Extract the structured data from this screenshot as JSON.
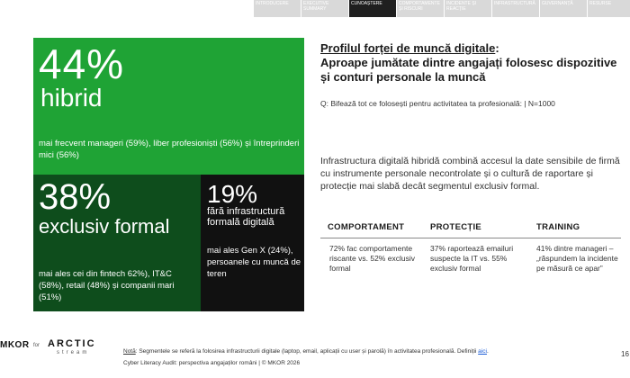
{
  "nav": {
    "items": [
      {
        "label": "INTRODUCERE",
        "active": false
      },
      {
        "label": "EXECUTIVE SUMMARY",
        "active": false
      },
      {
        "label": "CUNOAȘTERE",
        "active": true
      },
      {
        "label": "COMPORTAMENTE ȘI RISCURI",
        "active": false
      },
      {
        "label": "INCIDENTE ȘI REACȚIE",
        "active": false
      },
      {
        "label": "INFRASTRUCTURĂ",
        "active": false
      },
      {
        "label": "GUVERNANȚĂ",
        "active": false
      },
      {
        "label": "RESURSE",
        "active": false
      }
    ]
  },
  "hybrid": {
    "pct": "44%",
    "label": "hibrid",
    "desc": "mai frecvent manageri (59%), liber profesioniști (56%) și întreprinderi mici (56%)"
  },
  "formal": {
    "pct": "38%",
    "label": "exclusiv formal",
    "desc": "mai ales cei din fintech 62%), IT&C (58%), retail (48%) și companii mari (51%)"
  },
  "none": {
    "pct": "19%",
    "label": "fără infrastructură formală digitală",
    "desc": "mai ales Gen X (24%), persoanele cu muncă de teren"
  },
  "title": {
    "line1": "Profilul forței de muncă digitale",
    "colon": ":",
    "line2": "Aproape jumătate dintre angajați folosesc dispozitive și conturi personale la muncă"
  },
  "question": "Q: Bifează tot ce folosești pentru activitatea ta profesională: | N=1000",
  "paragraph": "Infrastructura digitală hibridă combină accesul la date sensibile de firmă cu instrumente personale necontrolate și o cultură de raportare și protecție mai slabă decât segmentul exclusiv formal.",
  "table": {
    "headers": [
      "COMPORTAMENT",
      "PROTECȚIE",
      "TRAINING"
    ],
    "cells": [
      "72% fac comportamente riscante vs. 52% exclusiv formal",
      "37% raportează emailuri suspecte la IT vs. 55% exclusiv formal",
      "41% dintre manageri – „răspundem la incidente pe măsură ce apar”"
    ]
  },
  "footer": {
    "logo_left": "MKOR",
    "logo_for": "for",
    "logo_right": "ARCTIC",
    "logo_right_sub": "stream",
    "note_label": "Notă",
    "note_text": ": Segmentele se referă la folosirea infrastructurii digitale (laptop, email, aplicații cu user și parolă) în activitatea profesională. Definiții ",
    "note_link": "aici",
    "note_end": ".",
    "credit": "Cyber Literacy Audit: perspectiva angajaților români | © MKOR 2026",
    "page": "16"
  },
  "colors": {
    "green": "#1fa335",
    "dark_green": "#0e4d1c",
    "black": "#111111",
    "nav_active": "#1f1f1f",
    "nav_inactive": "#d9d9d9"
  }
}
